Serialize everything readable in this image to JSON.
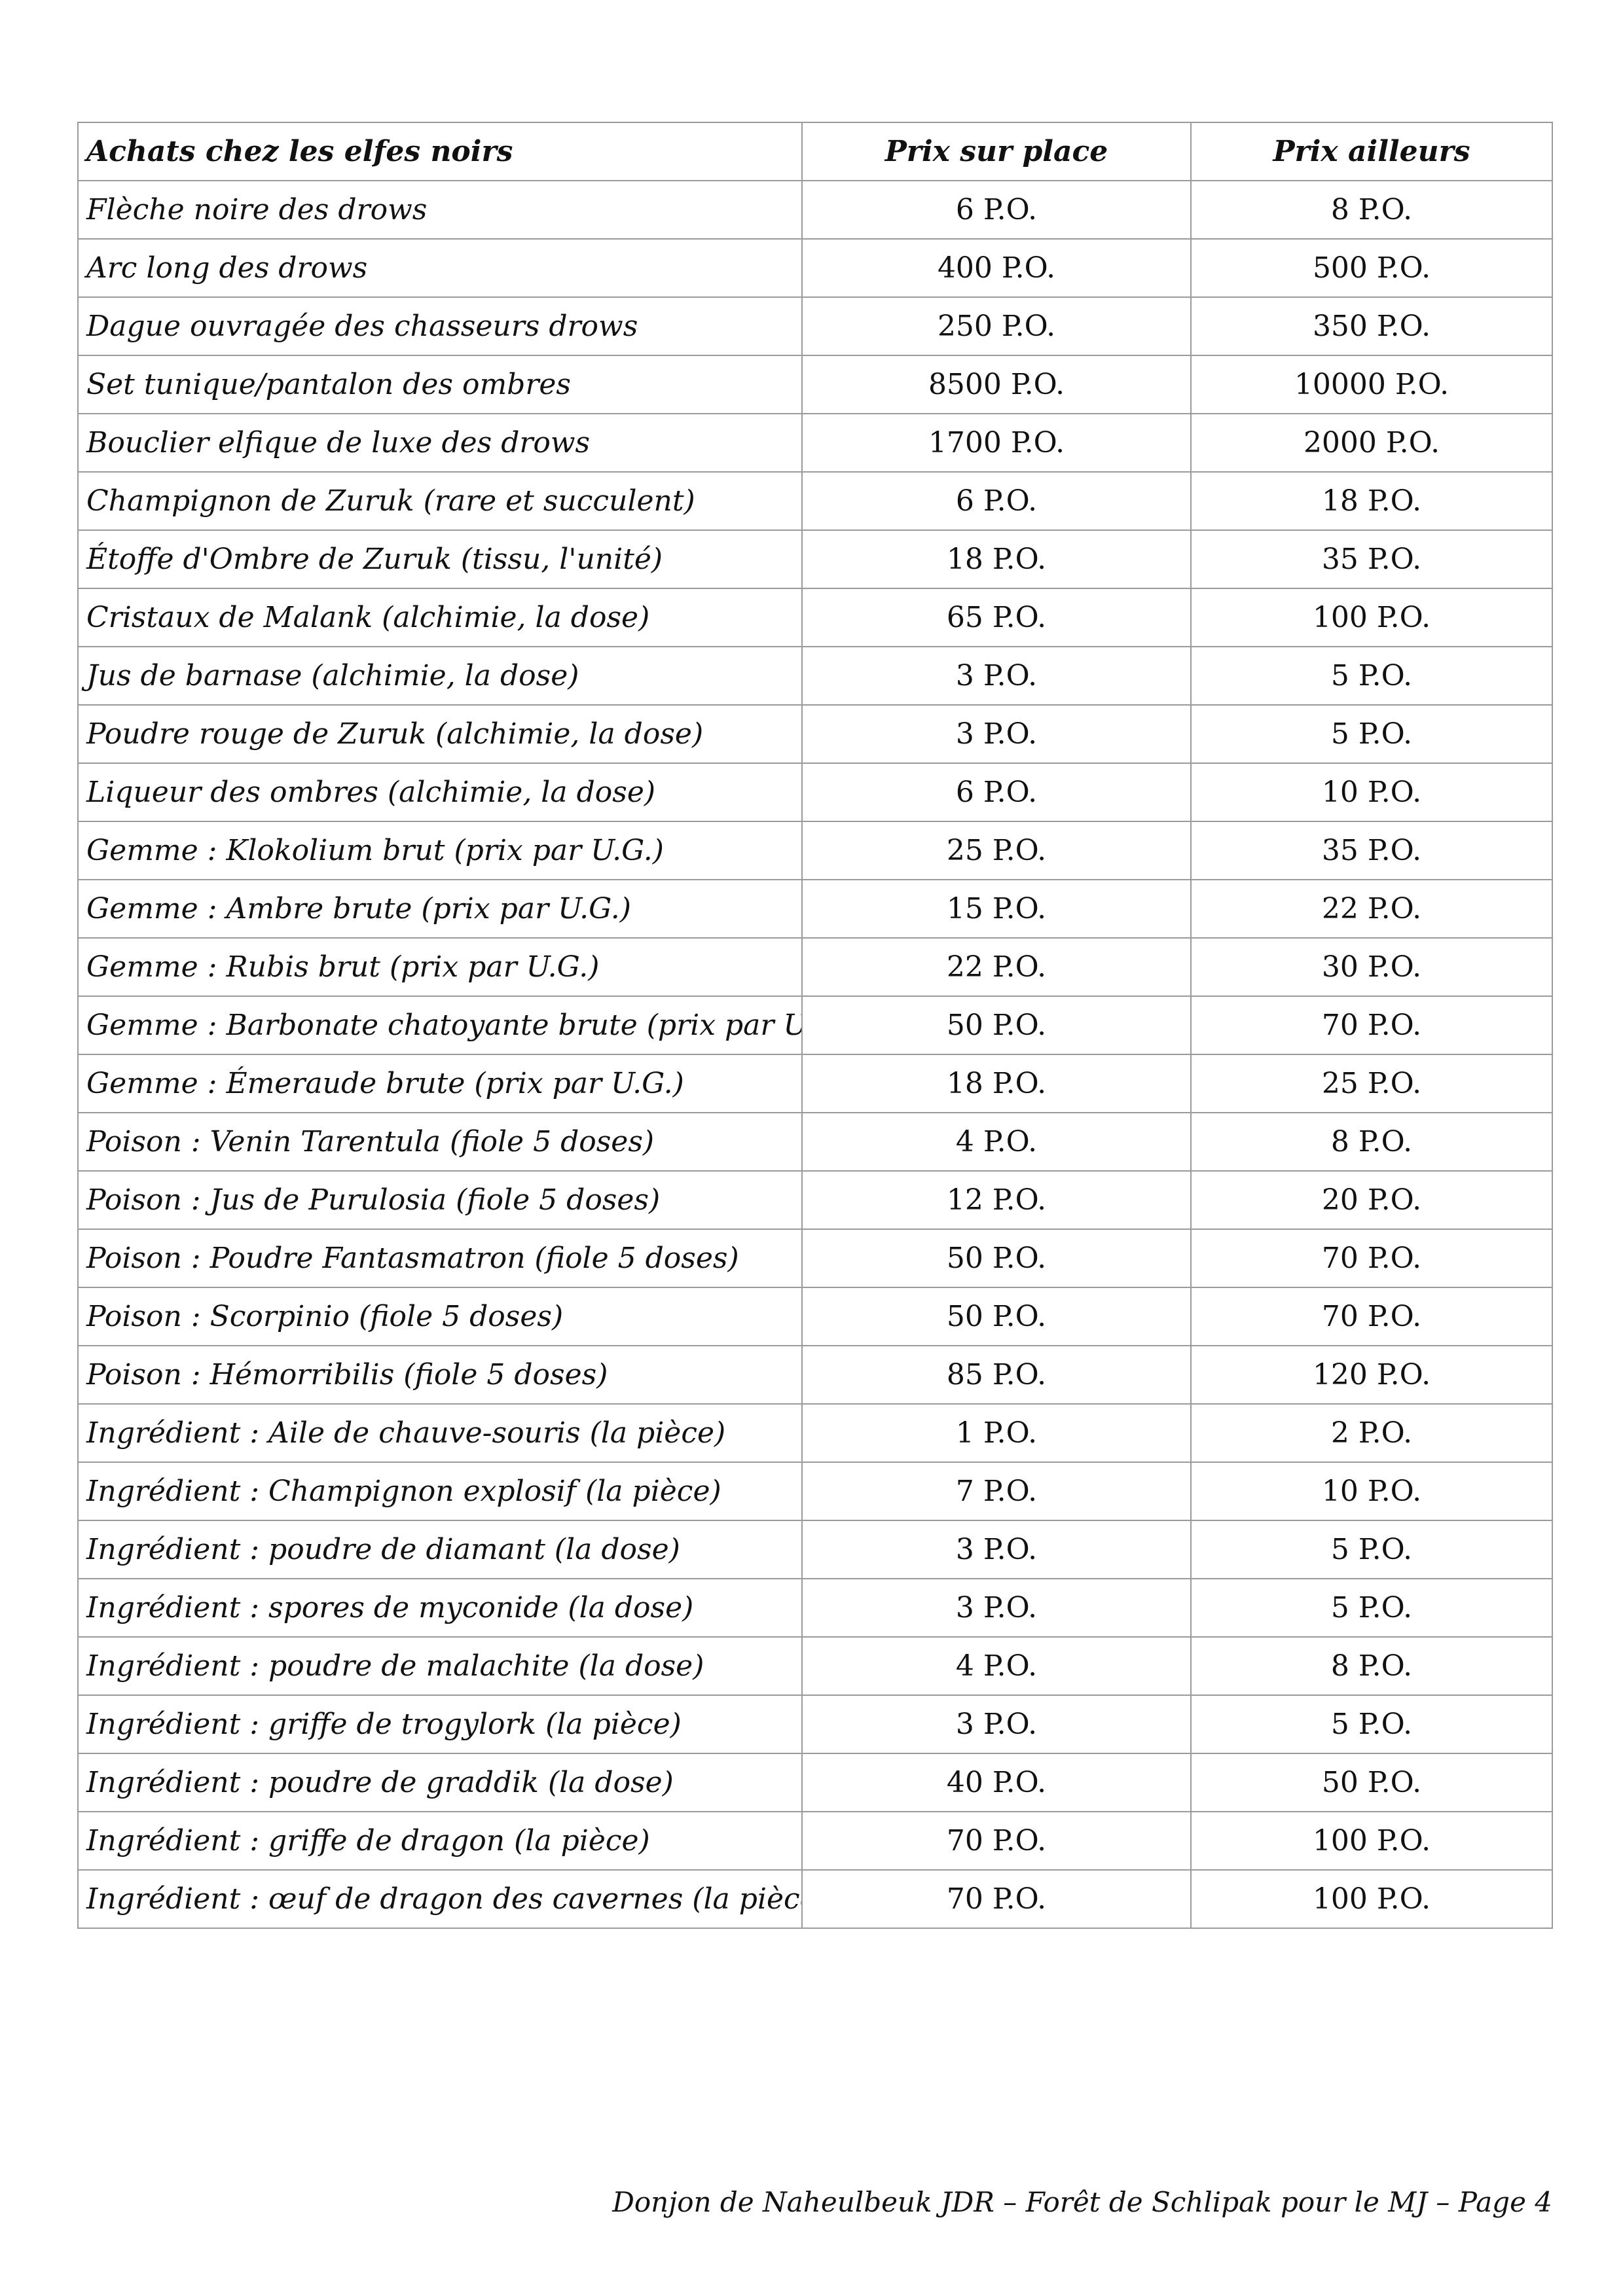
{
  "table": {
    "headers": {
      "item": "Achats chez les elfes noirs",
      "local_price": "Prix sur place",
      "other_price": "Prix ailleurs"
    },
    "rows": [
      {
        "item": "Flèche noire des drows",
        "local": "6 P.O.",
        "other": "8 P.O."
      },
      {
        "item": "Arc long des drows",
        "local": "400 P.O.",
        "other": "500 P.O."
      },
      {
        "item": "Dague ouvragée des chasseurs drows",
        "local": "250 P.O.",
        "other": "350 P.O."
      },
      {
        "item": "Set tunique/pantalon des ombres",
        "local": "8500 P.O.",
        "other": "10000 P.O."
      },
      {
        "item": "Bouclier elfique de luxe des drows",
        "local": "1700 P.O.",
        "other": "2000 P.O."
      },
      {
        "item": "Champignon de Zuruk (rare et succulent)",
        "local": "6 P.O.",
        "other": "18 P.O."
      },
      {
        "item": "Étoffe d'Ombre de Zuruk (tissu, l'unité)",
        "local": "18 P.O.",
        "other": "35 P.O."
      },
      {
        "item": "Cristaux de Malank (alchimie, la dose)",
        "local": "65 P.O.",
        "other": "100 P.O."
      },
      {
        "item": "Jus de barnase (alchimie, la dose)",
        "local": "3 P.O.",
        "other": "5 P.O."
      },
      {
        "item": "Poudre rouge de Zuruk (alchimie, la dose)",
        "local": "3 P.O.",
        "other": "5 P.O."
      },
      {
        "item": "Liqueur des ombres (alchimie, la dose)",
        "local": "6 P.O.",
        "other": "10 P.O."
      },
      {
        "item": "Gemme : Klokolium brut (prix par U.G.)",
        "local": "25 P.O.",
        "other": "35 P.O."
      },
      {
        "item": "Gemme : Ambre brute (prix par U.G.)",
        "local": "15 P.O.",
        "other": "22 P.O."
      },
      {
        "item": "Gemme : Rubis brut (prix par U.G.)",
        "local": "22 P.O.",
        "other": "30 P.O."
      },
      {
        "item": "Gemme : Barbonate chatoyante brute (prix par U.G.)",
        "local": "50 P.O.",
        "other": "70 P.O."
      },
      {
        "item": "Gemme : Émeraude brute (prix par U.G.)",
        "local": "18 P.O.",
        "other": "25 P.O."
      },
      {
        "item": "Poison : Venin Tarentula (fiole 5 doses)",
        "local": "4 P.O.",
        "other": "8 P.O."
      },
      {
        "item": "Poison : Jus de Purulosia (fiole 5 doses)",
        "local": "12 P.O.",
        "other": "20 P.O."
      },
      {
        "item": "Poison : Poudre Fantasmatron (fiole 5 doses)",
        "local": "50 P.O.",
        "other": "70 P.O."
      },
      {
        "item": "Poison : Scorpinio (fiole 5 doses)",
        "local": "50 P.O.",
        "other": "70 P.O."
      },
      {
        "item": "Poison : Hémorribilis (fiole 5 doses)",
        "local": "85 P.O.",
        "other": "120 P.O."
      },
      {
        "item": "Ingrédient : Aile de chauve-souris (la pièce)",
        "local": "1 P.O.",
        "other": "2 P.O."
      },
      {
        "item": "Ingrédient : Champignon explosif (la pièce)",
        "local": "7 P.O.",
        "other": "10 P.O."
      },
      {
        "item": "Ingrédient : poudre de diamant (la dose)",
        "local": "3 P.O.",
        "other": "5 P.O."
      },
      {
        "item": "Ingrédient : spores de myconide (la dose)",
        "local": "3 P.O.",
        "other": "5 P.O."
      },
      {
        "item": "Ingrédient : poudre de malachite (la dose)",
        "local": "4 P.O.",
        "other": "8 P.O."
      },
      {
        "item": "Ingrédient : griffe de trogylork (la pièce)",
        "local": "3 P.O.",
        "other": "5 P.O."
      },
      {
        "item": "Ingrédient : poudre de graddik (la dose)",
        "local": "40 P.O.",
        "other": "50 P.O."
      },
      {
        "item": "Ingrédient : griffe de dragon (la pièce)",
        "local": "70 P.O.",
        "other": "100 P.O."
      },
      {
        "item": "Ingrédient : œuf de dragon des cavernes (la pièce)",
        "local": "70 P.O.",
        "other": "100 P.O."
      }
    ]
  },
  "footer": {
    "text": "Donjon de Naheulbeuk JDR – Forêt de Schlipak pour le MJ – Page 4"
  }
}
